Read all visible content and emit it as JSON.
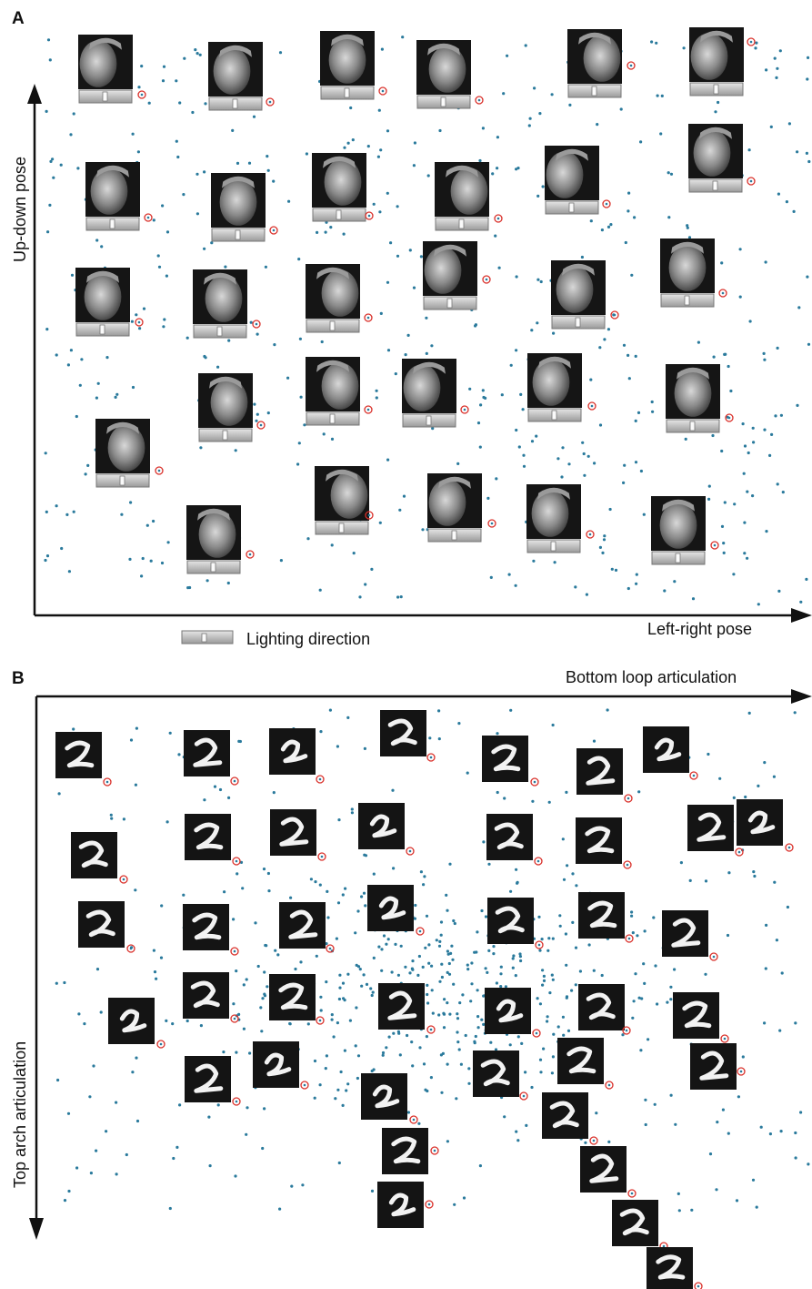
{
  "panelA": {
    "letter": "A",
    "y_axis_label": "Up-down pose",
    "x_axis_label": "Left-right pose",
    "legend_label": "Lighting direction",
    "colors": {
      "dot": "#2a7a9c",
      "marker": "#d9302a",
      "axis": "#111111"
    },
    "thumb_count": 29
  },
  "panelB": {
    "letter": "B",
    "x_axis_label": "Bottom loop articulation",
    "y_axis_label": "Top arch articulation",
    "colors": {
      "dot": "#2a7a9c",
      "marker": "#d9302a",
      "axis": "#111111"
    },
    "thumb_count": 43
  }
}
